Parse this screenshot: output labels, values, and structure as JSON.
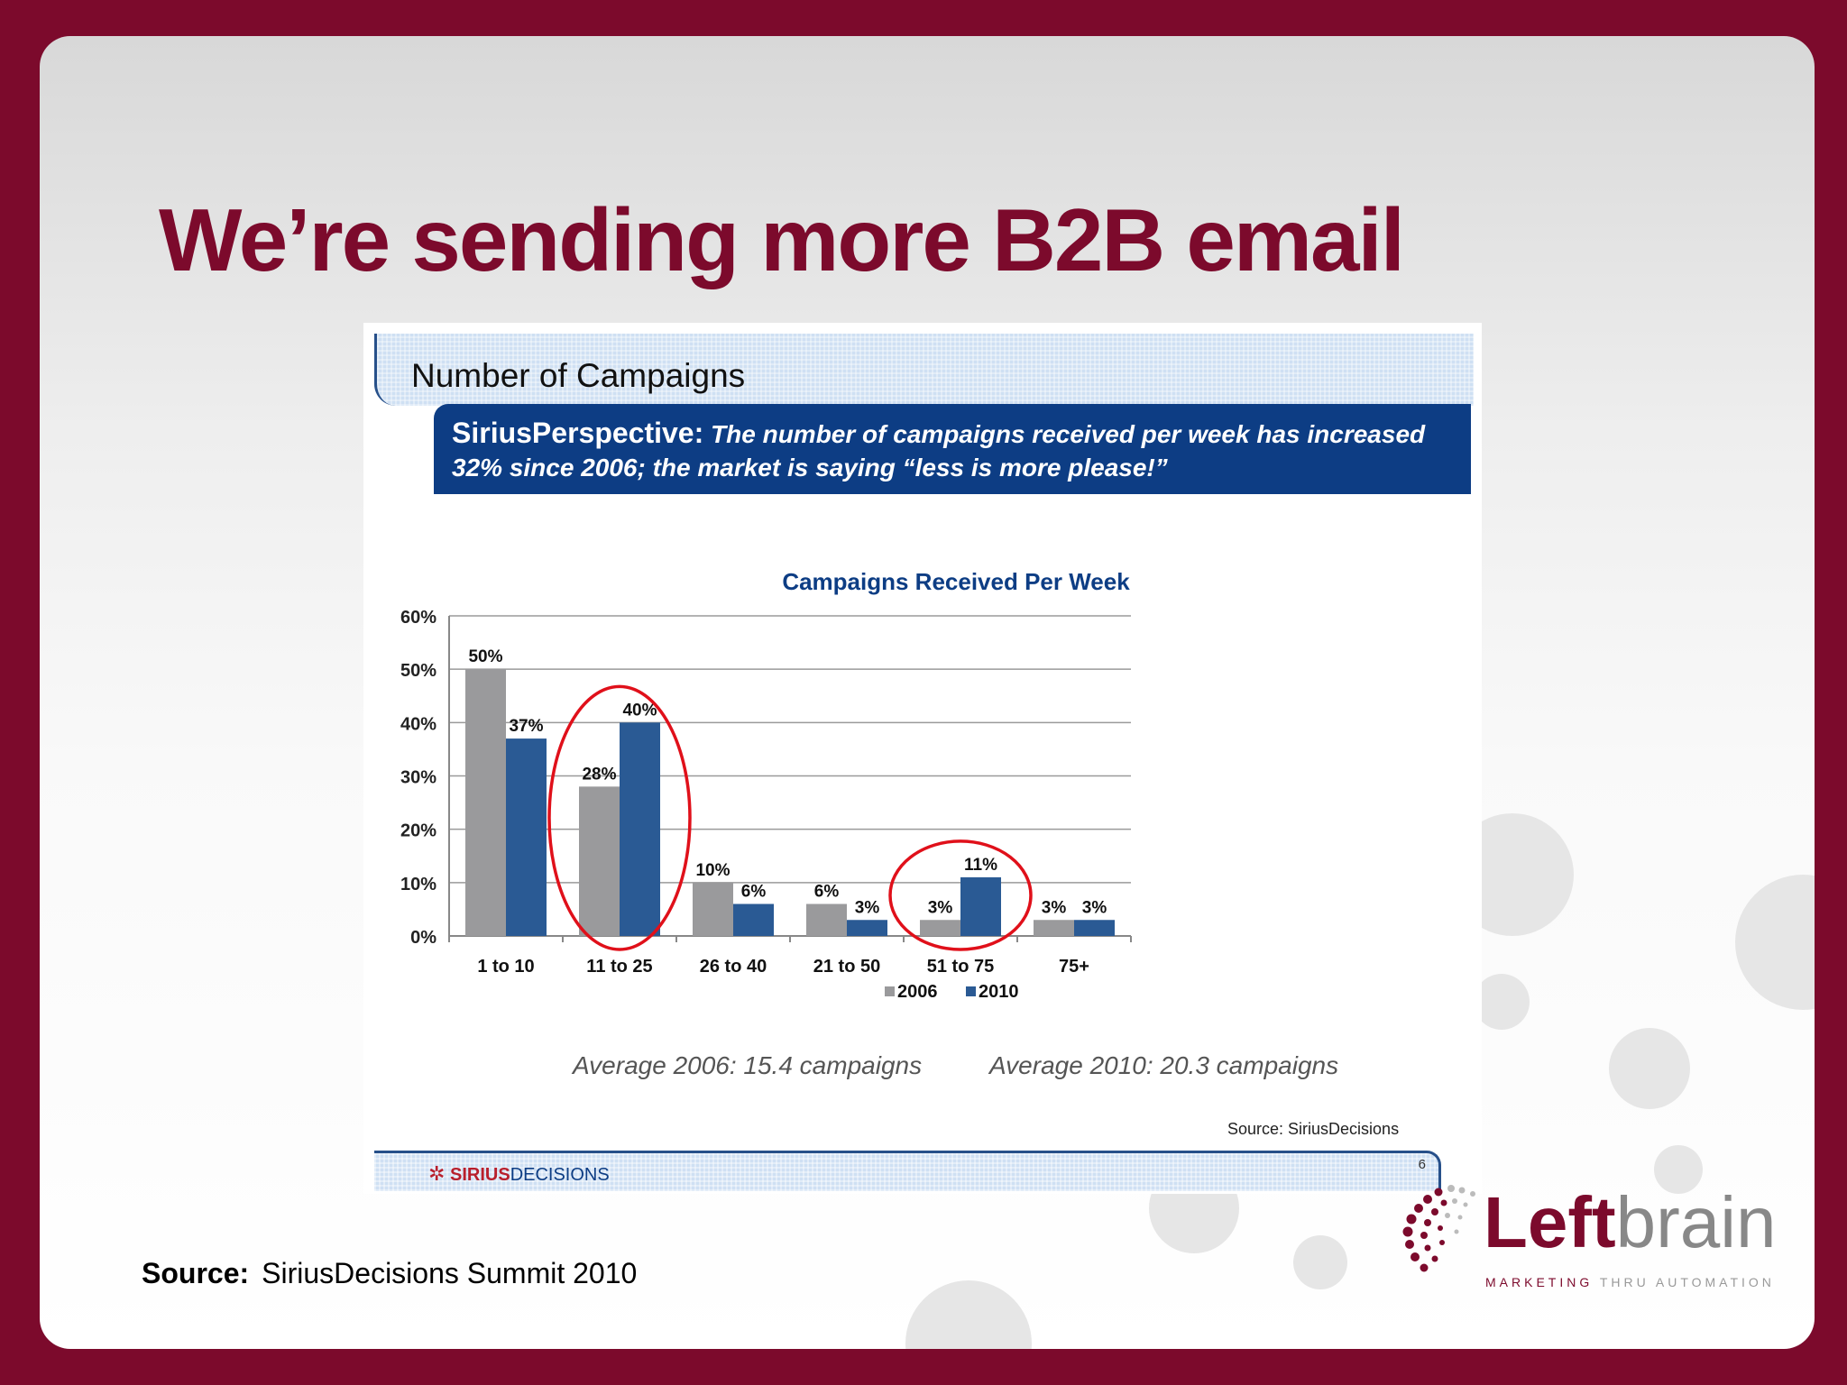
{
  "slide": {
    "title": "We’re sending more B2B email",
    "source_label": "Source:",
    "source_value": "SiriusDecisions Summit 2010"
  },
  "panel": {
    "header": "Number of Campaigns",
    "band_lead": "SiriusPerspective:",
    "band_text": "The number of campaigns received per week has increased 32% since 2006; the market is saying “less is more please!”",
    "avg_2006": "Average 2006: 15.4 campaigns",
    "avg_2010": "Average 2010: 20.3 campaigns",
    "chart_source": "Source:  SiriusDecisions",
    "footer_logo_icon": "✲",
    "footer_logo_a": "SIRIUS",
    "footer_logo_b": "DECISIONS",
    "page_number": "6"
  },
  "brand": {
    "name_a": "Left",
    "name_b": "brain",
    "tag_a": "MARKETING",
    "tag_b": "THRU AUTOMATION"
  },
  "colors": {
    "slide_border": "#7c0a2c",
    "accent": "#7c0a2c",
    "series_2006": "#9a9a9c",
    "series_2010": "#2a5a94",
    "band": "#0d3d84",
    "highlight": "#e0101a"
  },
  "chart_data": {
    "type": "bar",
    "title": "Campaigns Received Per Week",
    "categories": [
      "1 to 10",
      "11 to 25",
      "26 to 40",
      "21 to 50",
      "51 to 75",
      "75+"
    ],
    "series": [
      {
        "name": "2006",
        "values": [
          50,
          28,
          10,
          6,
          3,
          3
        ],
        "labels": [
          "50%",
          "28%",
          "10%",
          "6%",
          "3%",
          "3%"
        ]
      },
      {
        "name": "2010",
        "values": [
          37,
          40,
          6,
          3,
          11,
          3
        ],
        "labels": [
          "37%",
          "40%",
          "6%",
          "3%",
          "11%",
          "3%"
        ]
      }
    ],
    "ylim": [
      0,
      60
    ],
    "yticks": [
      0,
      10,
      20,
      30,
      40,
      50,
      60
    ],
    "ytick_labels": [
      "0%",
      "10%",
      "20%",
      "30%",
      "40%",
      "50%",
      "60%"
    ],
    "grid": true,
    "legend": "bottom-center",
    "highlighted_categories": [
      "11 to 25",
      "51 to 75"
    ]
  }
}
